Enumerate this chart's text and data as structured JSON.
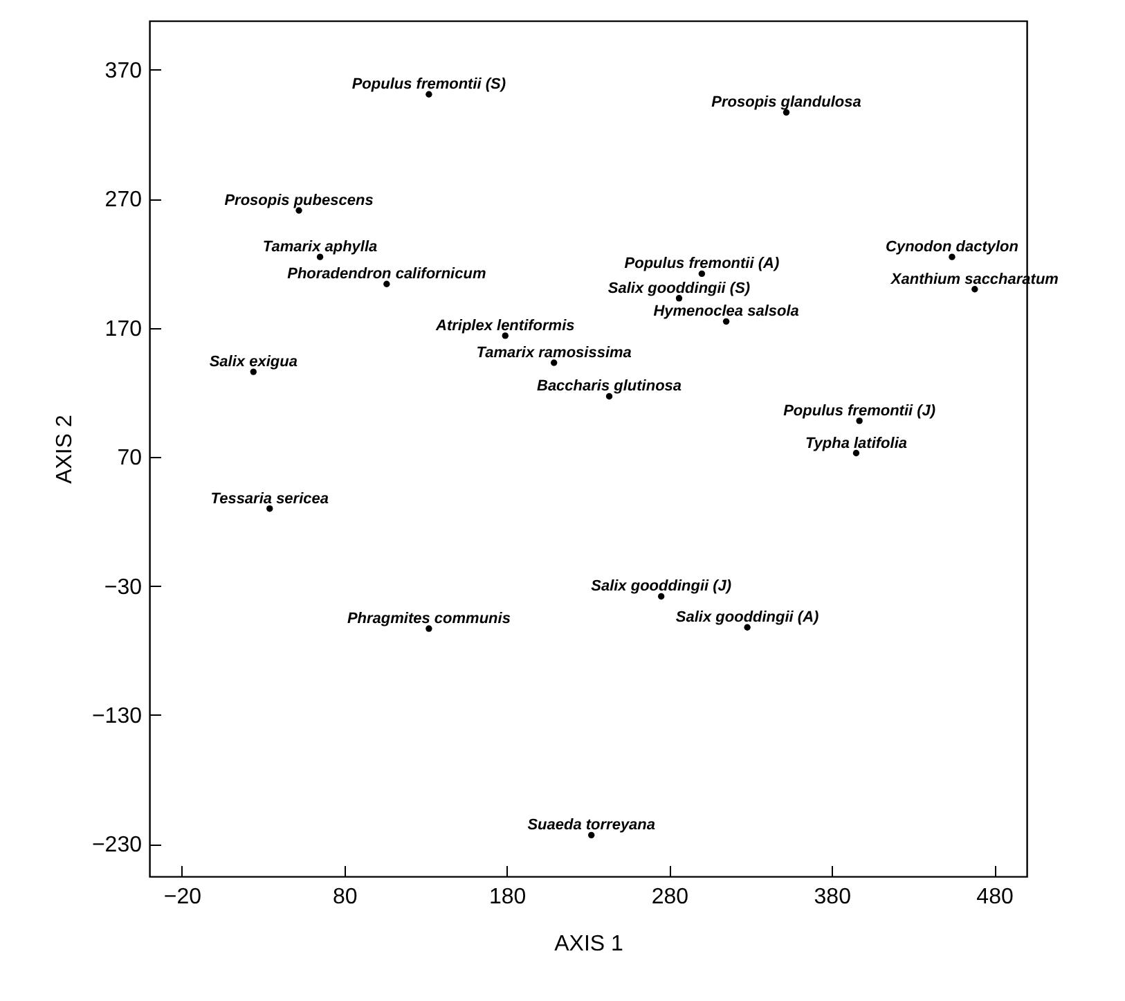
{
  "chart_data": {
    "type": "scatter",
    "xlabel": "AXIS 1",
    "ylabel": "AXIS 2",
    "marker": "circle",
    "grid": false,
    "xlim": [
      -40,
      500
    ],
    "ylim": [
      -255,
      408
    ],
    "xticks": [
      -20,
      80,
      180,
      280,
      380,
      480
    ],
    "yticks": [
      -230,
      -130,
      -30,
      70,
      170,
      270,
      370
    ],
    "x": [
      132,
      352,
      52,
      65,
      106,
      300,
      286,
      315,
      454,
      468,
      179,
      24,
      209,
      243,
      397,
      395,
      34,
      275,
      132,
      328,
      232
    ],
    "values": [
      351,
      337,
      261,
      225,
      204,
      212,
      193,
      175,
      225,
      200,
      164,
      136,
      143,
      117,
      98,
      73,
      30,
      -38,
      -63,
      -62,
      -223
    ],
    "value_labels": [
      "Populus fremontii (S)",
      "Prosopis glandulosa",
      "Prosopis pubescens",
      "Tamarix aphylla",
      "Phoradendron californicum",
      "Populus fremontii (A)",
      "Salix gooddingii (S)",
      "Hymenoclea salsola",
      "Cynodon dactylon",
      "Xanthium saccharatum",
      "Atriplex lentiformis",
      "Salix exigua",
      "Tamarix ramosissima",
      "Baccharis glutinosa",
      "Populus fremontii (J)",
      "Typha latifolia",
      "Tessaria sericea",
      "Salix gooddingii (J)",
      "Phragmites communis",
      "Salix gooddingii (A)",
      "Suaeda torreyana"
    ]
  }
}
